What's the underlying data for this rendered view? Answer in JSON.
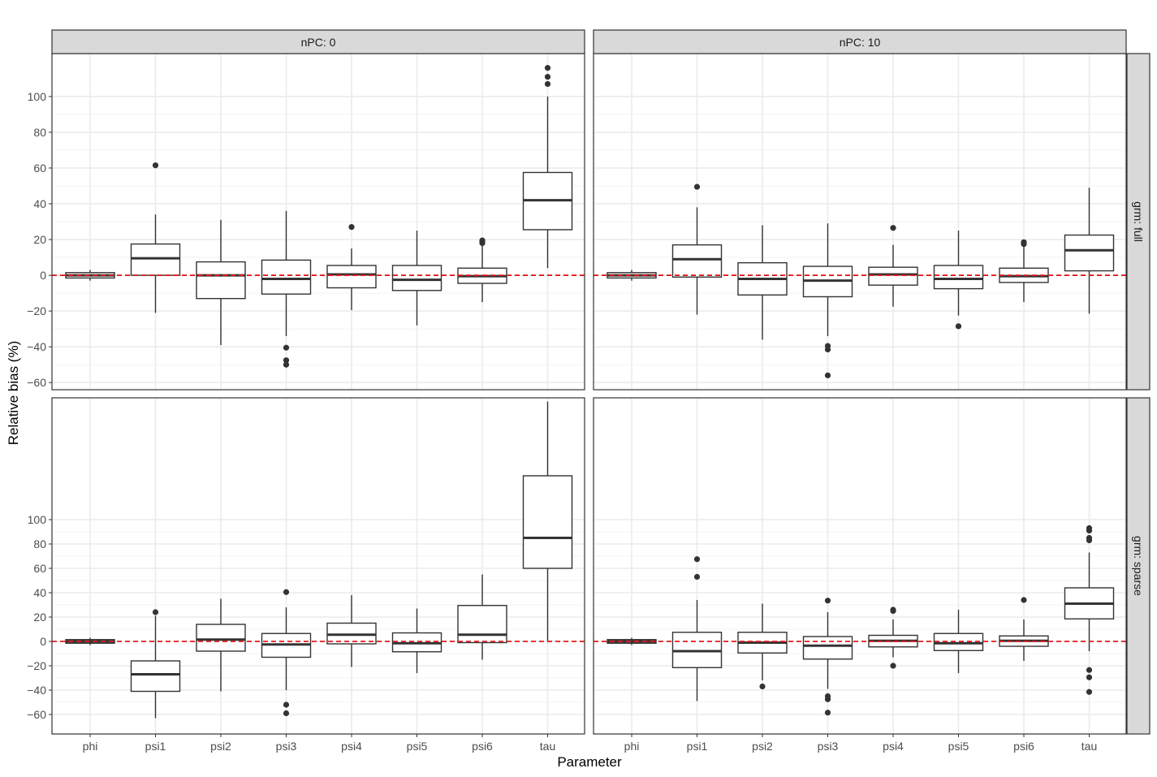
{
  "chart_data": {
    "type": "boxplot",
    "xlabel": "Parameter",
    "ylabel": "Relative bias (%)",
    "categories": [
      "phi",
      "psi1",
      "psi2",
      "psi3",
      "psi4",
      "psi5",
      "psi6",
      "tau"
    ],
    "col_strips": [
      "nPC: 0",
      "nPC: 10"
    ],
    "row_strips": [
      "grm: full",
      "grm: sparse"
    ],
    "reference_line": 0,
    "colors": {
      "ref_line": "#e41a1c",
      "box": "#333333",
      "strip_bg": "#d9d9d9",
      "grid": "#ebebeb"
    },
    "rows": [
      {
        "ylim": [
          -64,
          124
        ],
        "yticks": [
          100,
          80,
          60,
          40,
          20,
          0,
          -20,
          -40,
          -60
        ],
        "ytick_labels": [
          "100",
          "80",
          "60",
          "40",
          "20",
          "0",
          "−20",
          "−40",
          "−60"
        ]
      },
      {
        "ylim": [
          -76,
          200
        ],
        "yticks": [
          100,
          80,
          60,
          40,
          20,
          0,
          -20,
          -40,
          -60
        ],
        "ytick_labels": [
          "100",
          "80",
          "60",
          "40",
          "20",
          "0",
          "−20",
          "−40",
          "−60"
        ]
      }
    ],
    "panels": [
      {
        "row": 0,
        "col": 0,
        "boxes": [
          {
            "cat": "phi",
            "q1": -1.5,
            "med": 0,
            "q3": 1.5,
            "lo": -3,
            "hi": 3,
            "out": []
          },
          {
            "cat": "psi1",
            "q1": 0,
            "med": 9.5,
            "q3": 17.5,
            "lo": -21,
            "hi": 34,
            "out": [
              61.5
            ]
          },
          {
            "cat": "psi2",
            "q1": -13,
            "med": 0,
            "q3": 7.5,
            "lo": -39,
            "hi": 31,
            "out": []
          },
          {
            "cat": "psi3",
            "q1": -10.5,
            "med": -2,
            "q3": 8.5,
            "lo": -34,
            "hi": 36,
            "out": [
              -40.5,
              -47.5,
              -50
            ]
          },
          {
            "cat": "psi4",
            "q1": -7,
            "med": 0.5,
            "q3": 5.5,
            "lo": -19.5,
            "hi": 15,
            "out": [
              27
            ]
          },
          {
            "cat": "psi5",
            "q1": -8.5,
            "med": -2.5,
            "q3": 5.5,
            "lo": -28,
            "hi": 25,
            "out": []
          },
          {
            "cat": "psi6",
            "q1": -4.5,
            "med": -0.5,
            "q3": 4,
            "lo": -15,
            "hi": 17,
            "out": [
              18,
              19,
              19.5
            ]
          },
          {
            "cat": "tau",
            "q1": 25.5,
            "med": 42,
            "q3": 57.5,
            "lo": 4,
            "hi": 100,
            "out": [
              107,
              111,
              116
            ]
          }
        ]
      },
      {
        "row": 0,
        "col": 1,
        "boxes": [
          {
            "cat": "phi",
            "q1": -1.5,
            "med": 0,
            "q3": 1.5,
            "lo": -3,
            "hi": 3,
            "out": []
          },
          {
            "cat": "psi1",
            "q1": -1,
            "med": 9,
            "q3": 17,
            "lo": -22,
            "hi": 38,
            "out": [
              49.5
            ]
          },
          {
            "cat": "psi2",
            "q1": -11,
            "med": -2,
            "q3": 7,
            "lo": -36,
            "hi": 28,
            "out": []
          },
          {
            "cat": "psi3",
            "q1": -12,
            "med": -3,
            "q3": 5,
            "lo": -34,
            "hi": 29,
            "out": [
              -39.5,
              -41.5,
              -56
            ]
          },
          {
            "cat": "psi4",
            "q1": -5.5,
            "med": 0.5,
            "q3": 4.5,
            "lo": -17.5,
            "hi": 17,
            "out": [
              26.5
            ]
          },
          {
            "cat": "psi5",
            "q1": -7.5,
            "med": -2,
            "q3": 5.5,
            "lo": -22.5,
            "hi": 25,
            "out": [
              -28.5
            ]
          },
          {
            "cat": "psi6",
            "q1": -4,
            "med": -0.5,
            "q3": 4,
            "lo": -15,
            "hi": 16,
            "out": [
              17.5,
              18.5
            ]
          },
          {
            "cat": "tau",
            "q1": 2.5,
            "med": 14,
            "q3": 22.5,
            "lo": -21.5,
            "hi": 49,
            "out": []
          }
        ]
      },
      {
        "row": 1,
        "col": 0,
        "boxes": [
          {
            "cat": "phi",
            "q1": -1.5,
            "med": 0,
            "q3": 1.5,
            "lo": -3,
            "hi": 3,
            "out": []
          },
          {
            "cat": "psi1",
            "q1": -41,
            "med": -27,
            "q3": -16,
            "lo": -63,
            "hi": 21,
            "out": [
              24
            ]
          },
          {
            "cat": "psi2",
            "q1": -8,
            "med": 1.5,
            "q3": 14,
            "lo": -41,
            "hi": 35,
            "out": []
          },
          {
            "cat": "psi3",
            "q1": -13,
            "med": -2.5,
            "q3": 6.5,
            "lo": -40,
            "hi": 28,
            "out": [
              40.5,
              -52,
              -59
            ]
          },
          {
            "cat": "psi4",
            "q1": -2,
            "med": 5.5,
            "q3": 15,
            "lo": -21,
            "hi": 38,
            "out": []
          },
          {
            "cat": "psi5",
            "q1": -8.5,
            "med": -1.5,
            "q3": 7,
            "lo": -26,
            "hi": 27,
            "out": []
          },
          {
            "cat": "psi6",
            "q1": -1,
            "med": 5.5,
            "q3": 29.5,
            "lo": -15,
            "hi": 55,
            "out": []
          },
          {
            "cat": "tau",
            "q1": 60,
            "med": 85,
            "q3": 136,
            "lo": 0,
            "hi": 197,
            "out": []
          }
        ]
      },
      {
        "row": 1,
        "col": 1,
        "boxes": [
          {
            "cat": "phi",
            "q1": -1.5,
            "med": 0,
            "q3": 1.5,
            "lo": -3,
            "hi": 3,
            "out": []
          },
          {
            "cat": "psi1",
            "q1": -21.5,
            "med": -8,
            "q3": 7.5,
            "lo": -49,
            "hi": 34,
            "out": [
              53,
              67.5
            ]
          },
          {
            "cat": "psi2",
            "q1": -9.5,
            "med": -1,
            "q3": 7.5,
            "lo": -32,
            "hi": 31,
            "out": [
              -37
            ]
          },
          {
            "cat": "psi3",
            "q1": -14.5,
            "med": -3.5,
            "q3": 4,
            "lo": -39,
            "hi": 24,
            "out": [
              33.5,
              -45,
              -47.5,
              -58.5
            ]
          },
          {
            "cat": "psi4",
            "q1": -4.5,
            "med": 0.5,
            "q3": 5,
            "lo": -13,
            "hi": 18,
            "out": [
              25,
              26,
              -20
            ]
          },
          {
            "cat": "psi5",
            "q1": -7.5,
            "med": -1.5,
            "q3": 6.5,
            "lo": -26,
            "hi": 26,
            "out": []
          },
          {
            "cat": "psi6",
            "q1": -4,
            "med": 0.5,
            "q3": 4.5,
            "lo": -16,
            "hi": 18,
            "out": [
              34
            ]
          },
          {
            "cat": "tau",
            "q1": 18.5,
            "med": 31,
            "q3": 44,
            "lo": -8,
            "hi": 73,
            "out": [
              83,
              85,
              91,
              93,
              -23.5,
              -29.5,
              -41.5
            ]
          }
        ]
      }
    ]
  }
}
